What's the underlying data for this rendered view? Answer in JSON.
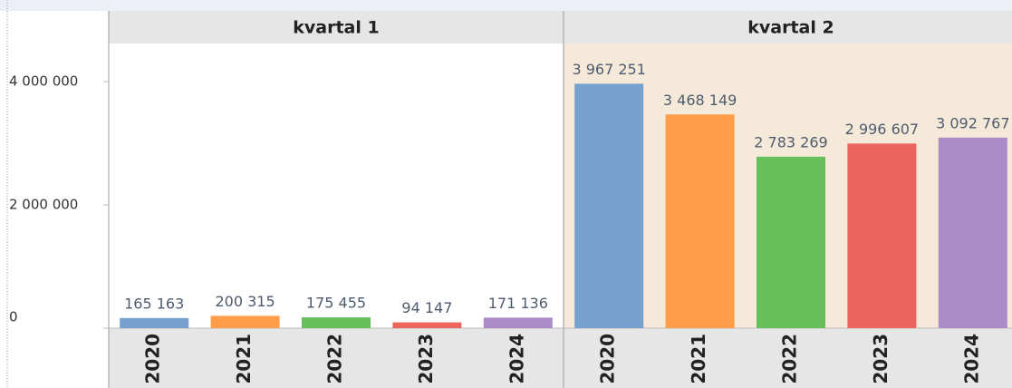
{
  "chart_data": {
    "type": "bar",
    "categories": [
      "2020",
      "2021",
      "2022",
      "2023",
      "2024"
    ],
    "colors": [
      "#76a1cf",
      "#ff9d4a",
      "#67bf5c",
      "#ed665d",
      "#ad8bc9"
    ],
    "series": [
      {
        "name": "kvartal 1",
        "values": [
          165163,
          200315,
          175455,
          94147,
          171136
        ],
        "value_labels": [
          "165 163",
          "200 315",
          "175 455",
          "94 147",
          "171 136"
        ]
      },
      {
        "name": "kvartal 2",
        "values": [
          3967251,
          3468149,
          2783269,
          2996607,
          3092767
        ],
        "value_labels": [
          "3 967 251",
          "3 468 149",
          "2 783 269",
          "2 996 607",
          "3 092 767"
        ]
      }
    ],
    "ylim": [
      0,
      4620000
    ],
    "yticks": [
      {
        "value": 0,
        "label": "0"
      },
      {
        "value": 2000000,
        "label": "2 000 000"
      },
      {
        "value": 4000000,
        "label": "4 000 000"
      }
    ]
  }
}
